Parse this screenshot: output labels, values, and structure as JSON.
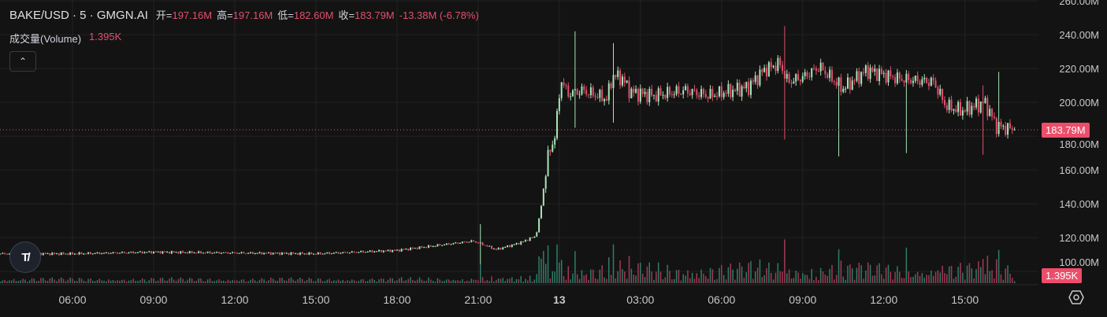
{
  "header": {
    "symbol": "BAKE/USD · 5 · GMGN.AI",
    "open_label": "开=",
    "open": "197.16M",
    "high_label": "高=",
    "high": "197.16M",
    "low_label": "低=",
    "low": "182.60M",
    "close_label": "收=",
    "close": "183.79M",
    "change": "-13.38M (-6.78%)"
  },
  "volume_legend": {
    "label": "成交量(Volume)",
    "value": "1.395K"
  },
  "collapse_icon": "chevron-up-icon",
  "last_price_tag": "183.79M",
  "last_volume_tag": "1.395K",
  "logo_text": "TV",
  "settings_icon": "gear-icon",
  "colors": {
    "up": "#a8e6b8",
    "down": "#e0506e",
    "up_volume": "#2f7d68",
    "down_volume": "#a33a55",
    "background": "#131313",
    "grid": "#232323",
    "tag": "#ee4d6a"
  },
  "chart_data": {
    "type": "candlestick",
    "interval": "5",
    "ylim": [
      96,
      261
    ],
    "y_ticks": [
      "260.00M",
      "240.00M",
      "220.00M",
      "200.00M",
      "180.00M",
      "160.00M",
      "140.00M",
      "120.00M",
      "100.00M"
    ],
    "y_tick_values": [
      260,
      240,
      220,
      200,
      180,
      160,
      140,
      120,
      100
    ],
    "x_ticks": [
      "06:00",
      "09:00",
      "12:00",
      "15:00",
      "18:00",
      "21:00",
      "13",
      "03:00",
      "06:00",
      "09:00",
      "12:00",
      "15:00"
    ],
    "x_tick_times": [
      "12 06:00",
      "12 09:00",
      "12 12:00",
      "12 15:00",
      "12 18:00",
      "12 21:00",
      "13 00:00",
      "13 03:00",
      "13 06:00",
      "13 09:00",
      "13 12:00",
      "13 15:00"
    ],
    "grid": true,
    "price_path_M": [
      [
        "12 03:20",
        110.5
      ],
      [
        "12 06:00",
        110.5
      ],
      [
        "12 09:00",
        111.5
      ],
      [
        "12 12:00",
        111
      ],
      [
        "12 15:00",
        110.5
      ],
      [
        "12 18:00",
        112.5
      ],
      [
        "12 20:48",
        118
      ],
      [
        "12 21:05",
        116.5
      ],
      [
        "12 21:40",
        113
      ],
      [
        "12 22:33",
        117
      ],
      [
        "12 23:08",
        121
      ],
      [
        "12 23:18",
        135
      ],
      [
        "12 23:34",
        167
      ],
      [
        "12 23:51",
        181
      ],
      [
        "13 00:04",
        214
      ],
      [
        "13 00:18",
        205
      ],
      [
        "13 00:53",
        207
      ],
      [
        "13 01:45",
        202
      ],
      [
        "13 01:59",
        216
      ],
      [
        "13 02:20",
        214
      ],
      [
        "13 02:38",
        206
      ],
      [
        "13 03:30",
        204
      ],
      [
        "13 04:40",
        207
      ],
      [
        "13 05:32",
        204
      ],
      [
        "13 06:59",
        209
      ],
      [
        "13 07:34",
        219
      ],
      [
        "13 08:09",
        223
      ],
      [
        "13 08:27",
        212
      ],
      [
        "13 09:02",
        215
      ],
      [
        "13 09:37",
        221
      ],
      [
        "13 10:29",
        208
      ],
      [
        "13 11:22",
        219
      ],
      [
        "13 12:32",
        214
      ],
      [
        "13 13:51",
        212
      ],
      [
        "13 14:17",
        198
      ],
      [
        "13 14:52",
        195
      ],
      [
        "13 15:44",
        200
      ],
      [
        "13 16:10",
        186
      ],
      [
        "13 16:50",
        183.79
      ]
    ],
    "notable_wicks_M": [
      [
        "12 21:05",
        128,
        104
      ],
      [
        "13 00:36",
        242,
        185
      ],
      [
        "13 01:59",
        235,
        188
      ],
      [
        "13 08:20",
        245,
        178
      ],
      [
        "13 10:20",
        215,
        168
      ],
      [
        "13 12:52",
        214,
        170
      ],
      [
        "13 15:38",
        210,
        169
      ],
      [
        "13 16:15",
        218,
        185
      ]
    ],
    "last_close": 183.79,
    "last_volume": "1.395K"
  }
}
